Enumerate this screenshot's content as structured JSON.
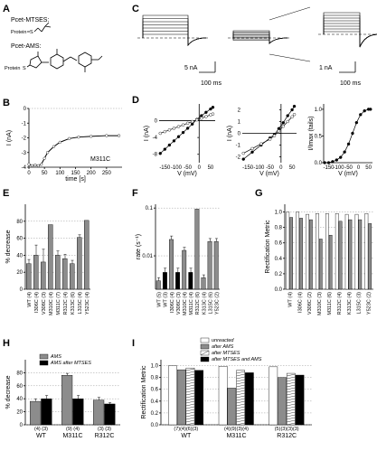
{
  "panels": {
    "A": "A",
    "B": "B",
    "C": "C",
    "D": "D",
    "E": "E",
    "F": "F",
    "G": "G",
    "H": "H",
    "I": "I"
  },
  "panel_A": {
    "title1": "Pcet-MTSES:",
    "title2": "Pcet-AMS:",
    "protein1": "Protein",
    "protein2": "Protein",
    "s1": "S",
    "s2": "S"
  },
  "panel_C": {
    "scale1_current": "5 nA",
    "scale1_time": "100 ms",
    "scale2_current": "1 nA",
    "scale2_time": "100 ms"
  },
  "chart_data": [
    {
      "panel": "B",
      "type": "line",
      "xlabel": "time [s]",
      "ylabel": "I (nA)",
      "xlim": [
        0,
        300
      ],
      "ylim": [
        -4,
        0
      ],
      "xticks": [
        "0",
        "50",
        "100",
        "150",
        "200",
        "250"
      ],
      "yticks": [
        "0",
        "-1",
        "-2",
        "-3",
        "-4"
      ],
      "annotation": "M311C",
      "x": [
        0,
        10,
        20,
        30,
        40,
        50,
        60,
        80,
        100,
        130,
        160,
        200,
        250,
        290
      ],
      "y": [
        -3.8,
        -3.9,
        -3.85,
        -3.9,
        -3.8,
        -3.4,
        -3.0,
        -2.6,
        -2.3,
        -2.05,
        -1.95,
        -1.9,
        -1.85,
        -1.85
      ]
    },
    {
      "panel": "D-left",
      "type": "line",
      "xlabel": "V (mV)",
      "ylabel": "I (nA)",
      "xticks": [
        "-150",
        "-100",
        "-50",
        "0",
        "50"
      ],
      "yticks": [
        "0",
        "-4",
        "-8"
      ],
      "xlim": [
        -175,
        70
      ],
      "ylim": [
        -10,
        4
      ],
      "series": [
        {
          "x": [
            -170,
            -150,
            -130,
            -110,
            -90,
            -70,
            -50,
            -30,
            -10,
            10,
            30,
            50,
            60
          ],
          "y": [
            -7.8,
            -6.8,
            -5.8,
            -4.8,
            -3.8,
            -2.8,
            -1.8,
            -0.8,
            0.3,
            1.2,
            2.0,
            2.8,
            3.2
          ]
        },
        {
          "x": [
            -170,
            -150,
            -130,
            -110,
            -90,
            -70,
            -50,
            -30,
            -10,
            10,
            30,
            50,
            60
          ],
          "y": [
            -3.0,
            -2.6,
            -2.2,
            -1.8,
            -1.4,
            -1.0,
            -0.6,
            -0.2,
            0.2,
            0.6,
            1.0,
            1.4,
            1.6
          ]
        }
      ]
    },
    {
      "panel": "D-middle",
      "type": "line",
      "xlabel": "V (mV)",
      "ylabel": "I (nA)",
      "xticks": [
        "-150",
        "-100",
        "-50",
        "0",
        "50"
      ],
      "yticks": [
        "2",
        "1",
        "0",
        "-1",
        "-2"
      ],
      "xlim": [
        -175,
        70
      ],
      "ylim": [
        -2.5,
        2.5
      ],
      "series": [
        {
          "x": [
            -170,
            -130,
            -90,
            -50,
            -30,
            -10,
            10,
            30,
            50,
            60
          ],
          "y": [
            -2.2,
            -1.6,
            -1.0,
            -0.4,
            -0.1,
            0.4,
            0.9,
            1.5,
            2.0,
            2.3
          ]
        },
        {
          "x": [
            -170,
            -130,
            -90,
            -50,
            -30,
            -10,
            10,
            30,
            50,
            60
          ],
          "y": [
            -1.7,
            -1.3,
            -0.9,
            -0.5,
            -0.2,
            0.2,
            0.6,
            1.0,
            1.4,
            1.6
          ]
        }
      ]
    },
    {
      "panel": "D-right",
      "type": "line",
      "xlabel": "V (mV)",
      "ylabel": "I/Imax (tails)",
      "xticks": [
        "-150",
        "-100",
        "-50",
        "0",
        "50"
      ],
      "yticks": [
        "0.0",
        "0.5",
        "1.0"
      ],
      "xlim": [
        -175,
        70
      ],
      "ylim": [
        0,
        1.1
      ],
      "x": [
        -170,
        -150,
        -130,
        -110,
        -90,
        -70,
        -50,
        -30,
        -10,
        10,
        30,
        50,
        60
      ],
      "y": [
        0.0,
        0.0,
        0.02,
        0.05,
        0.1,
        0.2,
        0.35,
        0.55,
        0.75,
        0.9,
        0.97,
        1.0,
        1.0
      ]
    },
    {
      "panel": "E",
      "type": "bar",
      "ylabel": "% decrease",
      "yticks": [
        "0",
        "20",
        "40",
        "60",
        "80"
      ],
      "ylim": [
        0,
        100
      ],
      "categories": [
        "WT (4)",
        "I306C (4)",
        "V308C (3)",
        "M310C (4)",
        "M311C (7)",
        "R312C (4)",
        "K313C (6)",
        "L315C (4)",
        "Y523C (4)"
      ],
      "values": [
        30,
        40,
        32,
        76,
        40,
        36,
        30,
        61,
        81
      ],
      "errors": [
        5,
        12,
        15,
        0,
        5,
        5,
        4,
        3,
        0
      ]
    },
    {
      "panel": "F",
      "type": "bar",
      "ylabel": "rate (s⁻¹)",
      "yscale": "log",
      "yticks": [
        "0.01",
        "0.1"
      ],
      "ylim": [
        0.002,
        0.12
      ],
      "categories": [
        "WT (5)",
        "WT (3)",
        "I306C (4)",
        "V308C (3)",
        "M310C (4)",
        "M311C (4)",
        "R312C (6)",
        "K313C (4)",
        "L315C (6)",
        "Y523C (2)"
      ],
      "values": [
        0.003,
        0.0045,
        0.022,
        0.0045,
        0.013,
        0.0045,
        0.095,
        0.0035,
        0.02,
        0.02
      ],
      "errors": [
        0.0005,
        0.001,
        0.004,
        0.001,
        0.002,
        0.001,
        0,
        0.0005,
        0.003,
        0.003
      ]
    },
    {
      "panel": "G",
      "type": "bar",
      "ylabel": "Rectification Metric",
      "yticks": [
        "0.0",
        "0.2",
        "0.4",
        "0.6",
        "0.8",
        "1.0"
      ],
      "ylim": [
        0,
        1.1
      ],
      "categories": [
        "WT (4)",
        "I306C (4)",
        "V308C (2)",
        "M310C (3)",
        "M311C (6)",
        "R312C (4)",
        "K313C (4)",
        "L315C (3)",
        "Y523C (2)"
      ],
      "series": [
        {
          "name": "unreacted",
          "values": [
            1.0,
            1.0,
            0.97,
            0.98,
            0.98,
            0.98,
            0.97,
            0.97,
            0.98
          ]
        },
        {
          "name": "after AMS",
          "values": [
            0.93,
            0.92,
            0.9,
            0.65,
            0.7,
            0.88,
            0.9,
            0.9,
            0.85
          ]
        }
      ]
    },
    {
      "panel": "H",
      "type": "bar",
      "ylabel": "% decrease",
      "yticks": [
        "0",
        "20",
        "40",
        "60",
        "80"
      ],
      "ylim": [
        0,
        100
      ],
      "legend": [
        "AMS",
        "AMS after MTSES"
      ],
      "categories": [
        "WT",
        "M311C",
        "R312C"
      ],
      "counts": [
        "(4) (3)",
        "(9) (4)",
        "(3) (3)"
      ],
      "series": [
        {
          "name": "AMS",
          "values": [
            36,
            76,
            38
          ],
          "errors": [
            4,
            3,
            4
          ]
        },
        {
          "name": "AMS after MTSES",
          "values": [
            40,
            40,
            32
          ],
          "errors": [
            5,
            5,
            2
          ]
        }
      ]
    },
    {
      "panel": "I",
      "type": "bar",
      "ylabel": "Rectification Metric",
      "yticks": [
        "0.0",
        "0.2",
        "0.4",
        "0.6",
        "0.8",
        "1.0"
      ],
      "ylim": [
        0,
        1.1
      ],
      "legend": [
        "unreacted",
        "after AMS",
        "after MTSES",
        "after MTSES and AMS"
      ],
      "categories": [
        "WT",
        "M311C",
        "R312C"
      ],
      "counts": [
        "(7)(4)(6)(3)",
        "(4)(9)(3)(4)",
        "(5)(3)(3)(3)"
      ],
      "series": [
        {
          "name": "unreacted",
          "values": [
            1.0,
            0.99,
            0.98
          ]
        },
        {
          "name": "after AMS",
          "values": [
            0.93,
            0.62,
            0.8
          ]
        },
        {
          "name": "after MTSES",
          "values": [
            0.96,
            0.92,
            0.87
          ]
        },
        {
          "name": "after MTSES and AMS",
          "values": [
            0.92,
            0.88,
            0.84
          ]
        }
      ]
    }
  ]
}
